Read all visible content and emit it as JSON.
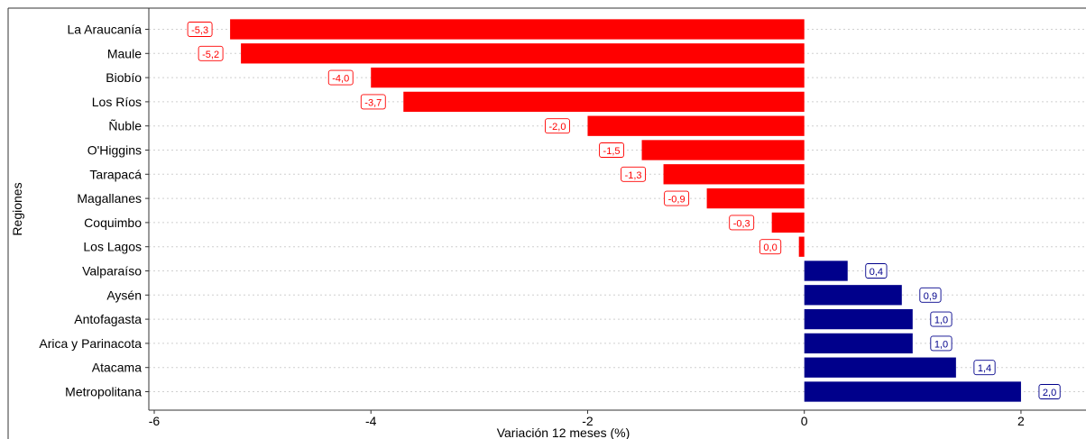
{
  "chart_data": {
    "type": "bar",
    "orientation": "horizontal",
    "categories": [
      "La Araucanía",
      "Maule",
      "Biobío",
      "Los Ríos",
      "Ñuble",
      "O'Higgins",
      "Tarapacá",
      "Magallanes",
      "Coquimbo",
      "Los Lagos",
      "Valparaíso",
      "Aysén",
      "Antofagasta",
      "Arica y Parinacota",
      "Atacama",
      "Metropolitana"
    ],
    "values": [
      -5.3,
      -5.2,
      -4.0,
      -3.7,
      -2.0,
      -1.5,
      -1.3,
      -0.9,
      -0.3,
      -0.05,
      0.4,
      0.9,
      1.0,
      1.0,
      1.4,
      2.0
    ],
    "data_labels": [
      "-5,3",
      "-5,2",
      "-4,0",
      "-3,7",
      "-2,0",
      "-1,5",
      "-1,3",
      "-0,9",
      "-0,3",
      "0,0",
      "0,4",
      "0,9",
      "1,0",
      "1,0",
      "1,4",
      "2,0"
    ],
    "xlabel": "Variación 12 meses (%)",
    "ylabel": "Regiones",
    "xlim": [
      -6.05,
      2.6
    ],
    "x_ticks": [
      -6,
      -4,
      -2,
      0,
      2
    ],
    "x_tick_labels": [
      "-6",
      "-4",
      "-2",
      "0",
      "2"
    ],
    "colors": {
      "negative": "#ff0000",
      "positive": "#00008b",
      "grid": "#cfcfcf",
      "axis": "#333333",
      "text": "#000000"
    },
    "grid": "horizontal dotted",
    "legend": "none"
  }
}
